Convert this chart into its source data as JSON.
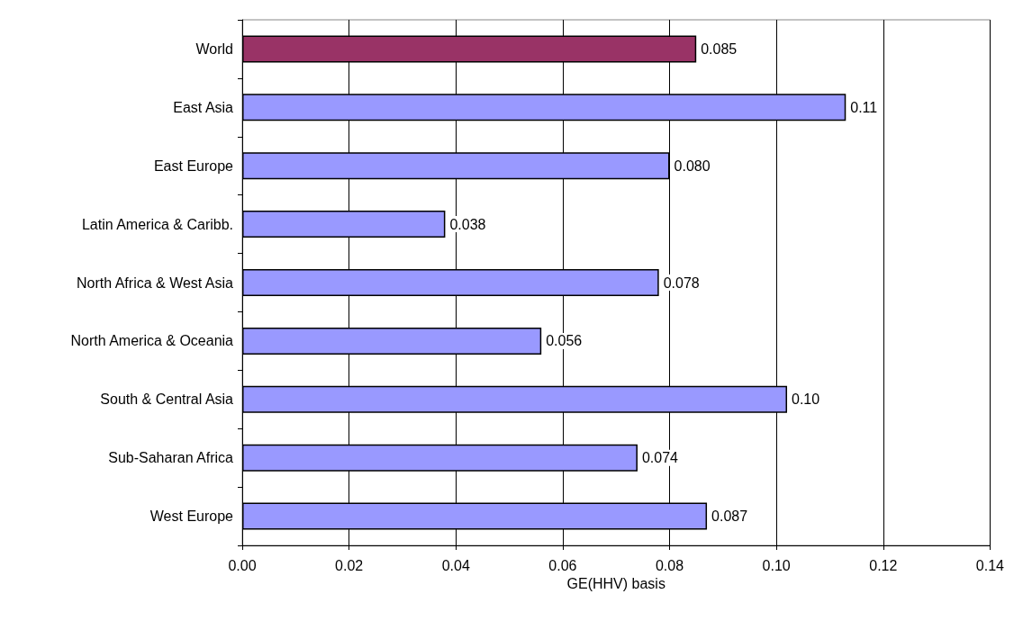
{
  "chart_data": {
    "type": "bar",
    "orientation": "horizontal",
    "categories": [
      "World",
      "East Asia",
      "East Europe",
      "Latin America & Caribb.",
      "North Africa & West Asia",
      "North America & Oceania",
      "South & Central Asia",
      "Sub-Saharan Africa",
      "West Europe"
    ],
    "values": [
      0.085,
      0.113,
      0.08,
      0.038,
      0.078,
      0.056,
      0.102,
      0.074,
      0.087
    ],
    "value_labels": [
      "0.085",
      "0.11",
      "0.080",
      "0.038",
      "0.078",
      "0.056",
      "0.10",
      "0.074",
      "0.087"
    ],
    "colors": [
      "#993366",
      "#9999ff",
      "#9999ff",
      "#9999ff",
      "#9999ff",
      "#9999ff",
      "#9999ff",
      "#9999ff",
      "#9999ff"
    ],
    "xlabel": "GE(HHV) basis",
    "xlim": [
      0,
      0.14
    ],
    "xticks": [
      "0.00",
      "0.02",
      "0.04",
      "0.06",
      "0.08",
      "0.10",
      "0.12",
      "0.14"
    ],
    "grid": "x"
  }
}
